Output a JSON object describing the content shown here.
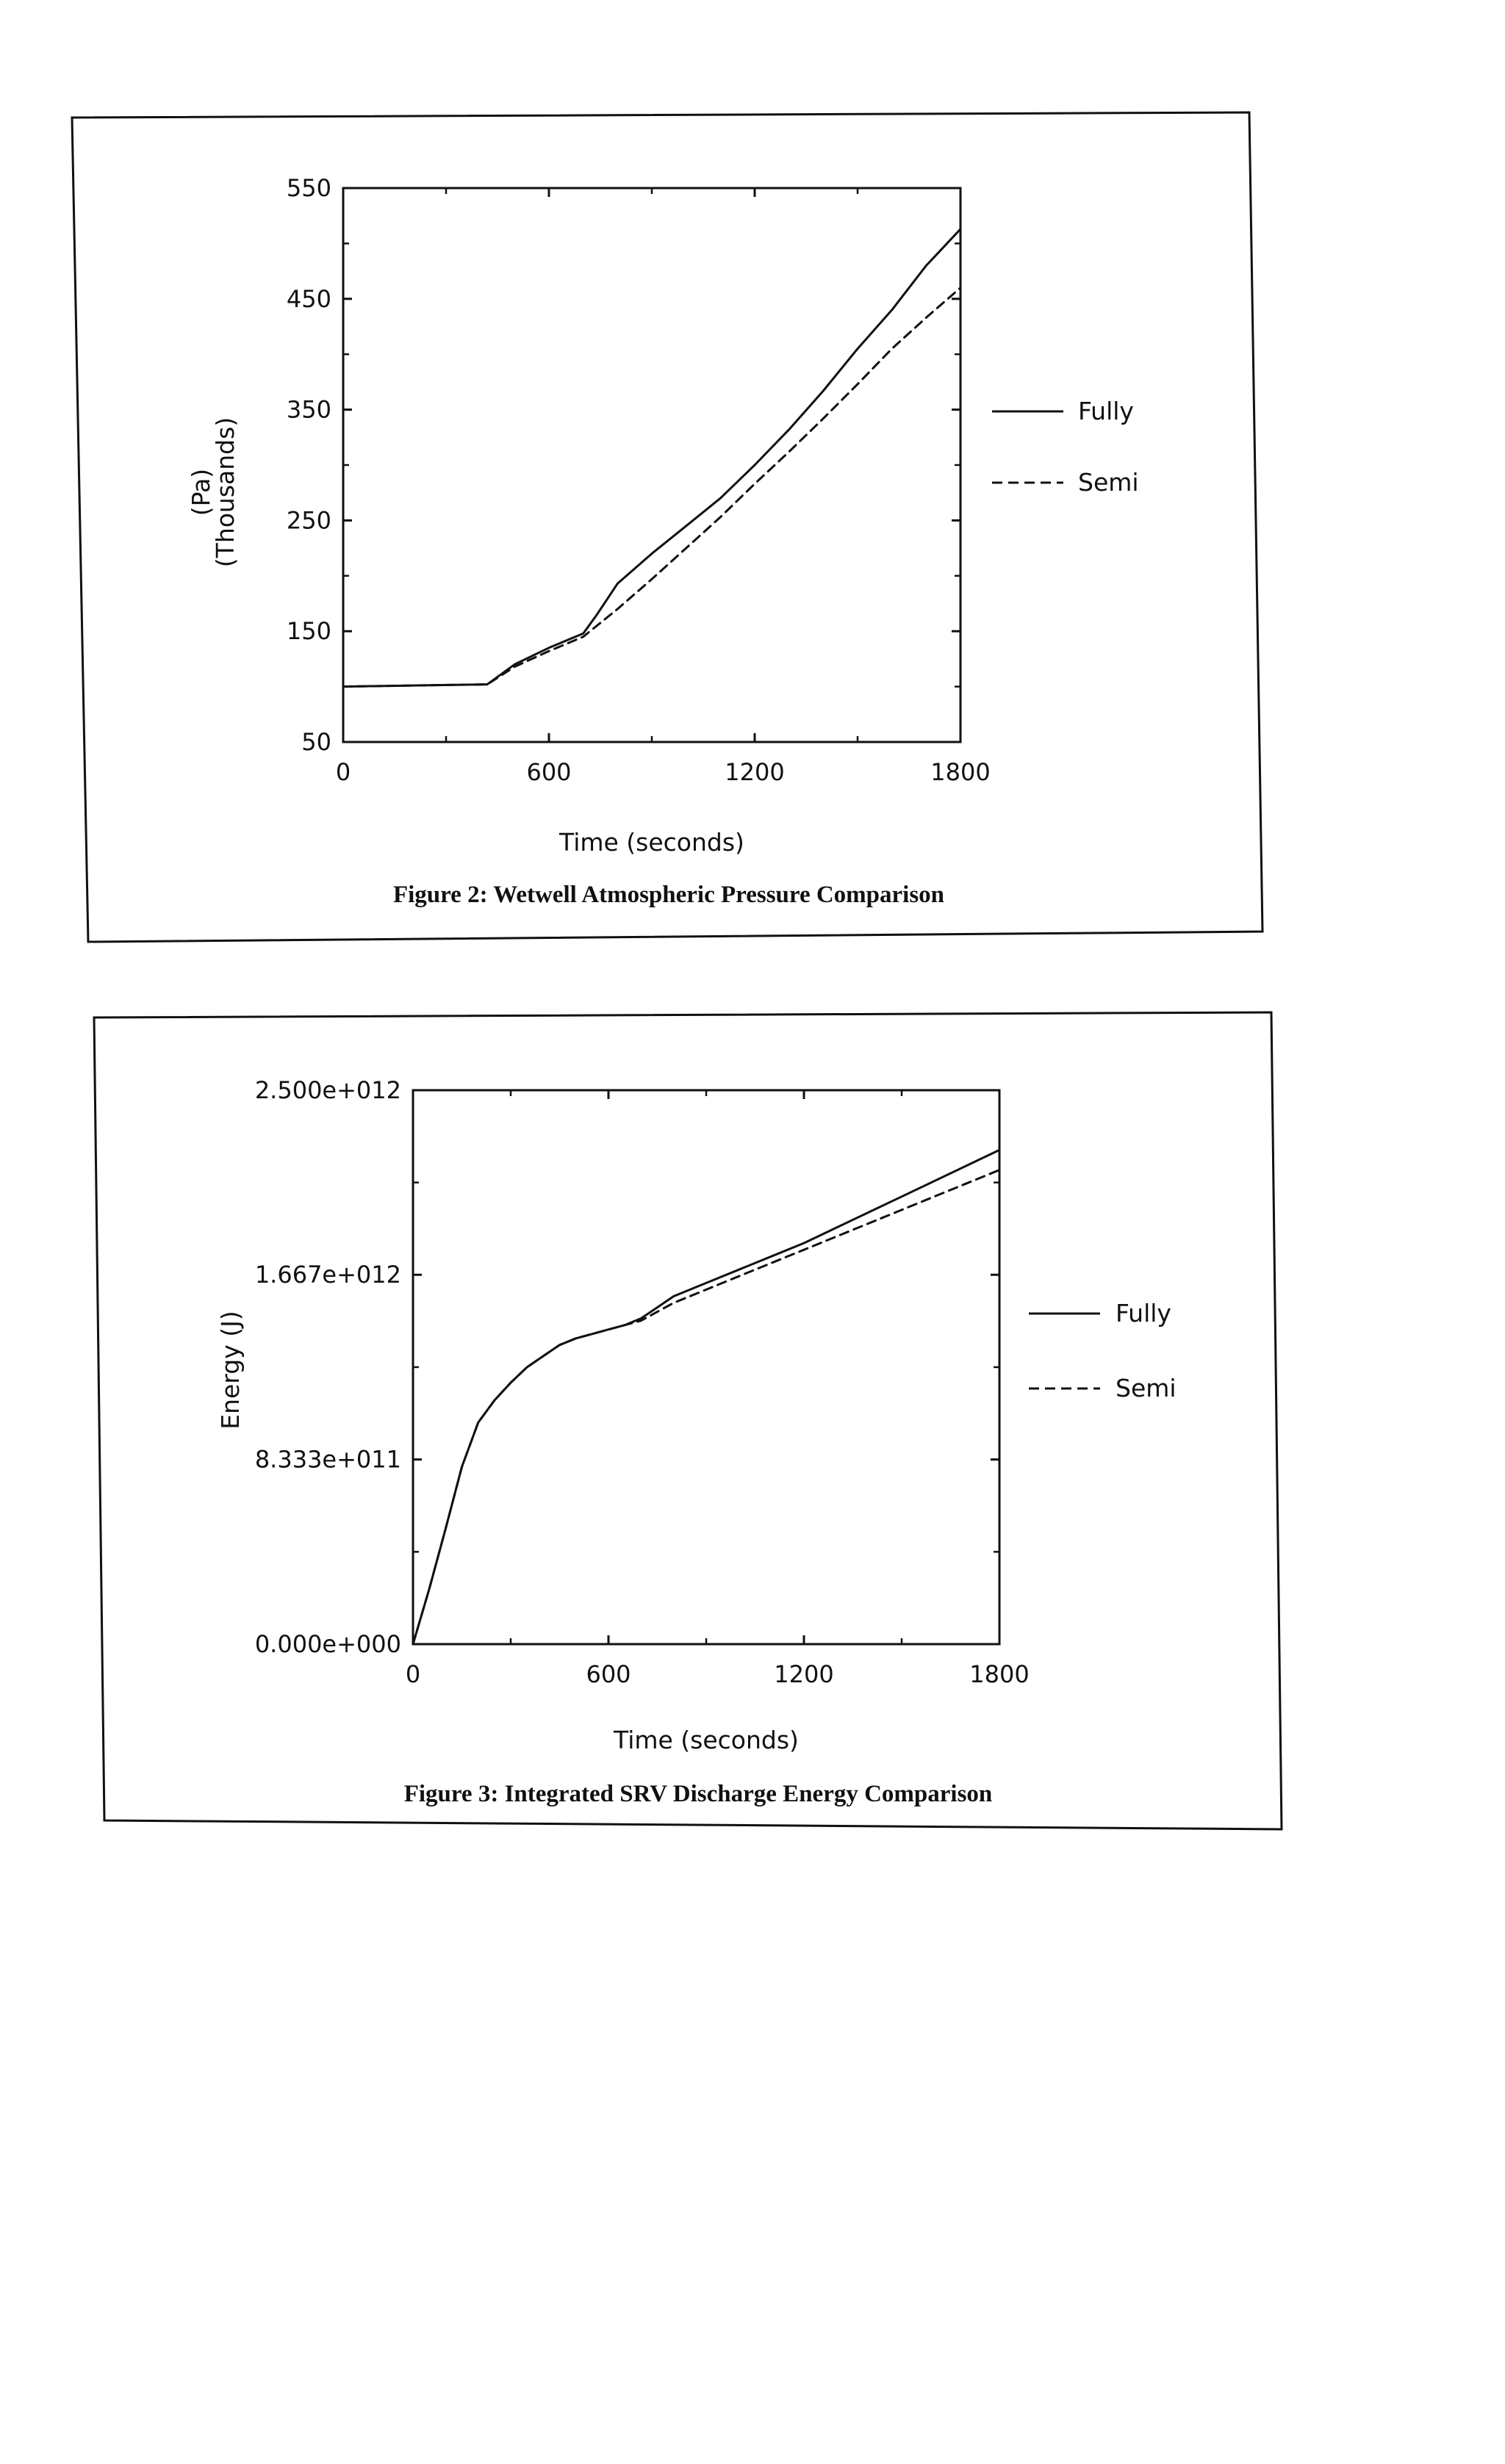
{
  "chart_data": [
    {
      "type": "line",
      "caption": "Figure 2:  Wetwell Atmospheric Pressure Comparison",
      "xlabel": "Time (seconds)",
      "ylabel_line1": "(Pa)",
      "ylabel_line2": "(Thousands)",
      "xlim": [
        0,
        1800
      ],
      "ylim": [
        50,
        550
      ],
      "x_ticks": [
        0,
        600,
        1200,
        1800
      ],
      "y_ticks": [
        50,
        150,
        250,
        350,
        450,
        550
      ],
      "legend_position": "right",
      "series": [
        {
          "name": "Fully",
          "style": "solid",
          "x": [
            0,
            200,
            420,
            500,
            600,
            700,
            740,
            800,
            900,
            1000,
            1100,
            1200,
            1300,
            1400,
            1500,
            1600,
            1700,
            1800
          ],
          "y": [
            100,
            101,
            102,
            120,
            135,
            148,
            165,
            193,
            220,
            245,
            270,
            300,
            332,
            367,
            405,
            440,
            480,
            513
          ]
        },
        {
          "name": "Semi",
          "style": "dashed",
          "x": [
            0,
            200,
            420,
            500,
            600,
            700,
            800,
            900,
            1000,
            1100,
            1200,
            1300,
            1400,
            1500,
            1600,
            1700,
            1800
          ],
          "y": [
            100,
            101,
            102,
            118,
            132,
            145,
            170,
            197,
            225,
            253,
            283,
            312,
            342,
            373,
            405,
            433,
            460
          ]
        }
      ]
    },
    {
      "type": "line",
      "caption": "Figure 3:  Integrated SRV Discharge Energy Comparison",
      "xlabel": "Time (seconds)",
      "ylabel": "Energy (J)",
      "xlim": [
        0,
        1800
      ],
      "ylim": [
        0,
        2500000000000.0
      ],
      "x_ticks": [
        0,
        600,
        1200,
        1800
      ],
      "y_ticks": [
        0,
        833300000000.0,
        1667000000000.0,
        2500000000000.0
      ],
      "y_tick_labels": [
        "0.000e+000",
        "8.333e+011",
        "1.667e+012",
        "2.500e+012"
      ],
      "legend_position": "right",
      "series": [
        {
          "name": "Fully",
          "style": "solid",
          "x": [
            0,
            50,
            100,
            150,
            200,
            250,
            300,
            350,
            400,
            450,
            500,
            550,
            600,
            650,
            700,
            750,
            800,
            900,
            1000,
            1100,
            1200,
            1300,
            1400,
            1500,
            1600,
            1700,
            1800
          ],
          "y": [
            0,
            250000000000.0,
            520000000000.0,
            800000000000.0,
            1000000000000.0,
            1100000000000.0,
            1180000000000.0,
            1250000000000.0,
            1300000000000.0,
            1350000000000.0,
            1380000000000.0,
            1400000000000.0,
            1420000000000.0,
            1440000000000.0,
            1470000000000.0,
            1520000000000.0,
            1570000000000.0,
            1630000000000.0,
            1690000000000.0,
            1750000000000.0,
            1810000000000.0,
            1880000000000.0,
            1950000000000.0,
            2020000000000.0,
            2090000000000.0,
            2160000000000.0,
            2230000000000.0
          ]
        },
        {
          "name": "Semi",
          "style": "dashed",
          "x": [
            0,
            50,
            100,
            150,
            200,
            250,
            300,
            350,
            400,
            450,
            500,
            550,
            600,
            650,
            700,
            750,
            800,
            900,
            1000,
            1100,
            1200,
            1300,
            1400,
            1500,
            1600,
            1700,
            1800
          ],
          "y": [
            0,
            250000000000.0,
            520000000000.0,
            800000000000.0,
            1000000000000.0,
            1100000000000.0,
            1180000000000.0,
            1250000000000.0,
            1300000000000.0,
            1350000000000.0,
            1380000000000.0,
            1400000000000.0,
            1420000000000.0,
            1440000000000.0,
            1460000000000.0,
            1500000000000.0,
            1540000000000.0,
            1600000000000.0,
            1660000000000.0,
            1720000000000.0,
            1780000000000.0,
            1840000000000.0,
            1900000000000.0,
            1960000000000.0,
            2020000000000.0,
            2080000000000.0,
            2140000000000.0
          ]
        }
      ]
    }
  ]
}
